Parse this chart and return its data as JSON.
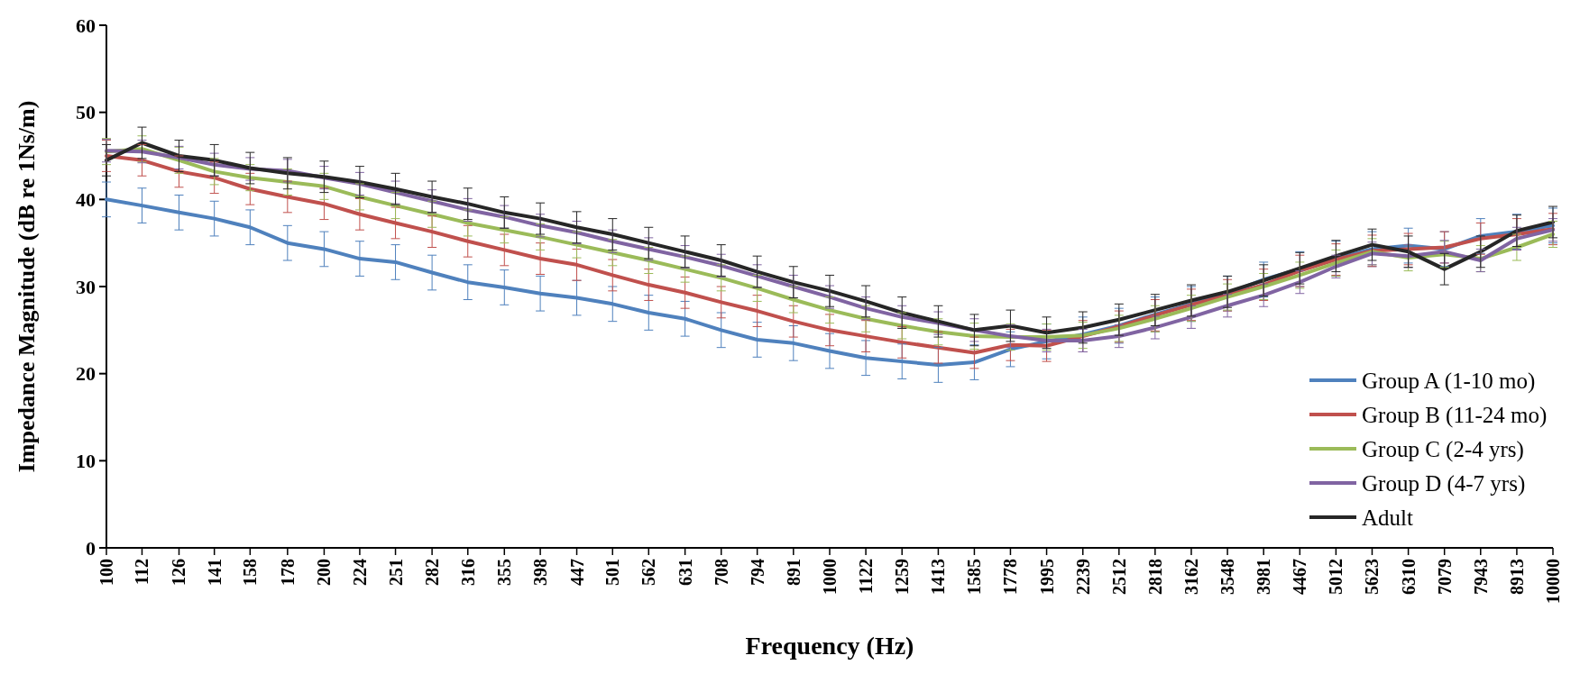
{
  "chart_data": {
    "type": "line",
    "xlabel": "Frequency (Hz)",
    "ylabel": "Impedance Magnitude (dB re 1Ns/m)",
    "log": "x",
    "xlim": [
      100,
      10000
    ],
    "xticks": [
      100,
      112,
      126,
      141,
      158,
      178,
      200,
      224,
      251,
      282,
      316,
      355,
      398,
      447,
      501,
      562,
      631,
      708,
      794,
      891,
      1000,
      1122,
      1259,
      1413,
      1585,
      1778,
      1995,
      2239,
      2512,
      2818,
      3162,
      3548,
      3981,
      4467,
      5012,
      5623,
      6310,
      7079,
      7943,
      8913,
      10000
    ],
    "ylim": [
      0,
      60
    ],
    "yticks": [
      0,
      10,
      20,
      30,
      40,
      50,
      60
    ],
    "grid": false,
    "legend": "bottom right",
    "marker": "none",
    "line_style": "solid",
    "x": [
      100,
      112,
      126,
      141,
      158,
      178,
      200,
      224,
      251,
      282,
      316,
      355,
      398,
      447,
      501,
      562,
      631,
      708,
      794,
      891,
      1000,
      1122,
      1259,
      1413,
      1585,
      1778,
      1995,
      2239,
      2512,
      2818,
      3162,
      3548,
      3981,
      4467,
      5012,
      5623,
      6310,
      7079,
      7943,
      8913,
      10000
    ],
    "series": [
      {
        "name": "Group A (1-10 mo)",
        "color": "#4f81bd",
        "values": [
          40,
          39.3,
          38.5,
          37.8,
          36.8,
          35,
          34.3,
          33.2,
          32.8,
          31.6,
          30.5,
          29.9,
          29.2,
          28.7,
          28,
          27,
          26.3,
          25,
          23.9,
          23.5,
          22.6,
          21.8,
          21.4,
          21,
          21.3,
          22.8,
          23.7,
          24.5,
          25.5,
          26.8,
          28,
          29.2,
          30.8,
          32,
          33.2,
          34.3,
          34.7,
          34.3,
          35.8,
          36.3,
          37
        ],
        "errors": [
          2,
          2,
          2,
          2,
          2,
          2,
          2,
          2,
          2,
          2,
          2,
          2,
          2,
          2,
          2,
          2,
          2,
          2,
          2,
          2,
          2,
          2,
          2,
          2,
          2,
          2,
          2,
          2,
          2,
          2,
          2,
          2,
          2,
          2,
          2,
          2,
          2,
          2,
          2,
          2,
          2
        ]
      },
      {
        "name": "Group B (11-24 mo)",
        "color": "#c0504d",
        "values": [
          45,
          44.5,
          43.2,
          42.5,
          41.2,
          40.3,
          39.5,
          38.3,
          37.3,
          36.3,
          35.2,
          34.2,
          33.2,
          32.5,
          31.3,
          30.2,
          29.3,
          28.2,
          27.2,
          26,
          25,
          24.3,
          23.6,
          23,
          22.4,
          23.3,
          23.2,
          24.3,
          25.4,
          26.7,
          27.9,
          29,
          30.2,
          31.8,
          33.1,
          34.1,
          34.3,
          34.5,
          35.5,
          36,
          36.6
        ],
        "errors": [
          1.8,
          1.8,
          1.8,
          1.8,
          1.8,
          1.8,
          1.8,
          1.8,
          1.8,
          1.8,
          1.8,
          1.8,
          1.8,
          1.8,
          1.8,
          1.8,
          1.8,
          1.8,
          1.8,
          1.8,
          1.8,
          1.8,
          1.8,
          1.8,
          1.8,
          1.8,
          1.8,
          1.8,
          1.8,
          1.8,
          1.8,
          1.8,
          1.8,
          1.8,
          1.8,
          1.8,
          1.8,
          1.8,
          1.8,
          1.8,
          1.8
        ]
      },
      {
        "name": "Group C (2-4 yrs)",
        "color": "#9bbb59",
        "values": [
          45.5,
          45.8,
          44.5,
          43.2,
          42.5,
          42,
          41.5,
          40.3,
          39.3,
          38.3,
          37.3,
          36.5,
          35.7,
          34.8,
          33.9,
          33,
          32,
          31,
          29.8,
          28.5,
          27.3,
          26.3,
          25.5,
          24.8,
          24.3,
          24.2,
          24.2,
          24.4,
          25.2,
          26.3,
          27.5,
          28.8,
          30,
          31.3,
          32.7,
          34,
          33.3,
          33.7,
          33.2,
          34.5,
          36
        ],
        "errors": [
          1.5,
          1.5,
          1.5,
          1.5,
          1.5,
          1.5,
          1.5,
          1.5,
          1.5,
          1.5,
          1.5,
          1.5,
          1.5,
          1.5,
          1.5,
          1.5,
          1.5,
          1.5,
          1.5,
          1.5,
          1.5,
          1.5,
          1.5,
          1.5,
          1.5,
          1.5,
          1.5,
          1.5,
          1.5,
          1.5,
          1.5,
          1.5,
          1.5,
          1.5,
          1.5,
          1.5,
          1.5,
          1.5,
          1.5,
          1.5,
          1.5
        ]
      },
      {
        "name": "Group D (4-7 yrs)",
        "color": "#8064a2",
        "values": [
          45.6,
          45.5,
          44.8,
          44,
          43.5,
          43.3,
          42.5,
          41.8,
          40.8,
          39.8,
          38.8,
          38,
          37,
          36.2,
          35.2,
          34.3,
          33.4,
          32.4,
          31.2,
          30,
          28.8,
          27.5,
          26.5,
          25.8,
          25,
          24.3,
          23.8,
          23.8,
          24.3,
          25.3,
          26.5,
          27.8,
          29,
          30.5,
          32.3,
          33.8,
          33.5,
          34,
          33,
          35.5,
          36.5
        ],
        "errors": [
          1.3,
          1.3,
          1.3,
          1.3,
          1.3,
          1.3,
          1.3,
          1.3,
          1.3,
          1.3,
          1.3,
          1.3,
          1.3,
          1.3,
          1.3,
          1.3,
          1.3,
          1.3,
          1.3,
          1.3,
          1.3,
          1.3,
          1.3,
          1.3,
          1.3,
          1.3,
          1.3,
          1.3,
          1.3,
          1.3,
          1.3,
          1.3,
          1.3,
          1.3,
          1.3,
          1.3,
          1.3,
          1.3,
          1.3,
          1.3,
          1.3
        ]
      },
      {
        "name": "Adult",
        "color": "#262626",
        "values": [
          44.5,
          46.5,
          45,
          44.5,
          43.6,
          43,
          42.6,
          42,
          41.2,
          40.3,
          39.5,
          38.5,
          37.8,
          36.8,
          36,
          35,
          34,
          33,
          31.7,
          30.5,
          29.5,
          28.3,
          27,
          26,
          25,
          25.5,
          24.7,
          25.3,
          26.2,
          27.3,
          28.4,
          29.4,
          30.7,
          32.1,
          33.5,
          34.8,
          34,
          32,
          34,
          36.4,
          37.4
        ],
        "errors": [
          1.8,
          1.8,
          1.8,
          1.8,
          1.8,
          1.8,
          1.8,
          1.8,
          1.8,
          1.8,
          1.8,
          1.8,
          1.8,
          1.8,
          1.8,
          1.8,
          1.8,
          1.8,
          1.8,
          1.8,
          1.8,
          1.8,
          1.8,
          1.8,
          1.8,
          1.8,
          1.8,
          1.8,
          1.8,
          1.8,
          1.8,
          1.8,
          1.8,
          1.8,
          1.8,
          1.8,
          1.8,
          1.8,
          1.8,
          1.8,
          1.8
        ]
      }
    ]
  }
}
